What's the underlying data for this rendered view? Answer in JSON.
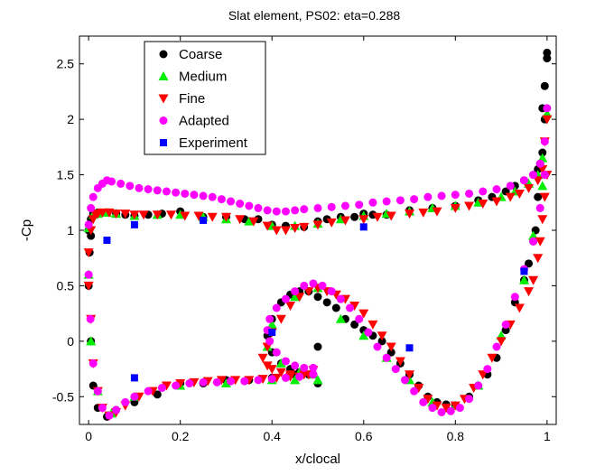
{
  "chart_data": {
    "type": "scatter",
    "title": "Slat element, PS02: eta=0.288",
    "xlabel": "x/clocal",
    "ylabel": "-Cp",
    "xlim": [
      -0.02,
      1.02
    ],
    "ylim": [
      -0.75,
      2.75
    ],
    "xticks": [
      0,
      0.2,
      0.4,
      0.6,
      0.8,
      1
    ],
    "xtick_labels": [
      "0",
      "0.2",
      "0.4",
      "0.6",
      "0.8",
      "1"
    ],
    "yticks": [
      -0.5,
      0,
      0.5,
      1,
      1.5,
      2,
      2.5
    ],
    "ytick_labels": [
      "-0.5",
      "0",
      "0.5",
      "1",
      "1.5",
      "2",
      "2.5"
    ],
    "grid": false,
    "legend_position": "top-left",
    "series": [
      {
        "name": "Coarse",
        "marker": "circle",
        "color": "#000000",
        "x": [
          0.0,
          0.005,
          0.01,
          0.02,
          0.04,
          0.06,
          0.08,
          0.1,
          0.13,
          0.16,
          0.2,
          0.25,
          0.3,
          0.34,
          0.37,
          0.4,
          0.43,
          0.47,
          0.5,
          0.52,
          0.55,
          0.58,
          0.6,
          0.62,
          0.65,
          0.7,
          0.75,
          0.8,
          0.85,
          0.88,
          0.91,
          0.93,
          0.95,
          0.97,
          0.98,
          0.99,
          0.995,
          1.0,
          1.0,
          0.995,
          0.99,
          0.985,
          0.98,
          0.975,
          0.97,
          0.96,
          0.95,
          0.93,
          0.91,
          0.89,
          0.87,
          0.85,
          0.83,
          0.8,
          0.78,
          0.76,
          0.74,
          0.72,
          0.7,
          0.68,
          0.66,
          0.64,
          0.62,
          0.6,
          0.58,
          0.56,
          0.54,
          0.52,
          0.5,
          0.48,
          0.46,
          0.44,
          0.42,
          0.4,
          0.39,
          0.4,
          0.42,
          0.44,
          0.46,
          0.48,
          0.49,
          0.5,
          0.5,
          0.45,
          0.4,
          0.35,
          0.3,
          0.25,
          0.2,
          0.15,
          0.1,
          0.06,
          0.04,
          0.02,
          0.01,
          0.005,
          0.0,
          0.002,
          0.005
        ],
        "y": [
          1.0,
          1.1,
          1.15,
          1.16,
          1.16,
          1.15,
          1.14,
          1.13,
          1.14,
          1.15,
          1.17,
          1.12,
          1.12,
          1.1,
          1.1,
          1.05,
          1.04,
          1.03,
          1.08,
          1.1,
          1.12,
          1.12,
          1.15,
          1.14,
          1.14,
          1.18,
          1.2,
          1.22,
          1.27,
          1.3,
          1.35,
          1.4,
          1.45,
          1.5,
          1.55,
          1.7,
          2.0,
          2.6,
          2.55,
          2.3,
          2.1,
          1.6,
          1.3,
          1.0,
          0.9,
          0.7,
          0.55,
          0.35,
          0.1,
          -0.15,
          -0.3,
          -0.4,
          -0.5,
          -0.58,
          -0.57,
          -0.55,
          -0.5,
          -0.4,
          -0.3,
          -0.2,
          -0.1,
          0.0,
          0.05,
          0.1,
          0.15,
          0.2,
          0.3,
          0.35,
          0.4,
          0.45,
          0.45,
          0.42,
          0.35,
          0.2,
          0.05,
          -0.1,
          -0.2,
          -0.25,
          -0.28,
          -0.3,
          -0.3,
          -0.38,
          -0.05,
          -0.3,
          -0.33,
          -0.35,
          -0.35,
          -0.38,
          -0.38,
          -0.48,
          -0.55,
          -0.62,
          -0.68,
          -0.6,
          -0.4,
          0.0,
          0.5,
          0.8,
          0.95
        ]
      },
      {
        "name": "Medium",
        "marker": "triangle-up",
        "color": "#00ee00",
        "x": [
          0.0,
          0.01,
          0.02,
          0.04,
          0.06,
          0.1,
          0.15,
          0.2,
          0.25,
          0.3,
          0.35,
          0.4,
          0.45,
          0.5,
          0.55,
          0.6,
          0.65,
          0.7,
          0.75,
          0.8,
          0.85,
          0.9,
          0.93,
          0.96,
          0.98,
          0.99,
          1.0,
          0.99,
          0.97,
          0.95,
          0.9,
          0.85,
          0.8,
          0.75,
          0.7,
          0.65,
          0.6,
          0.55,
          0.5,
          0.45,
          0.4,
          0.39,
          0.42,
          0.46,
          0.49,
          0.5,
          0.45,
          0.4,
          0.3,
          0.2,
          0.1,
          0.05,
          0.02,
          0.005,
          0.0
        ],
        "y": [
          1.02,
          1.14,
          1.15,
          1.16,
          1.15,
          1.13,
          1.14,
          1.14,
          1.12,
          1.1,
          1.08,
          1.04,
          1.04,
          1.06,
          1.1,
          1.13,
          1.15,
          1.17,
          1.2,
          1.22,
          1.25,
          1.3,
          1.35,
          1.42,
          1.5,
          1.65,
          2.05,
          1.4,
          0.95,
          0.55,
          0.05,
          -0.4,
          -0.58,
          -0.55,
          -0.35,
          -0.15,
          0.05,
          0.2,
          0.48,
          0.4,
          0.15,
          -0.05,
          -0.2,
          -0.28,
          -0.3,
          -0.35,
          -0.35,
          -0.35,
          -0.38,
          -0.4,
          -0.5,
          -0.65,
          -0.45,
          0.0,
          0.6
        ]
      },
      {
        "name": "Fine",
        "marker": "triangle-down",
        "color": "#ff0000",
        "x": [
          0.0,
          0.005,
          0.01,
          0.015,
          0.02,
          0.03,
          0.045,
          0.06,
          0.08,
          0.1,
          0.12,
          0.15,
          0.18,
          0.21,
          0.24,
          0.27,
          0.3,
          0.33,
          0.36,
          0.39,
          0.41,
          0.43,
          0.45,
          0.47,
          0.5,
          0.53,
          0.56,
          0.6,
          0.63,
          0.66,
          0.7,
          0.73,
          0.76,
          0.8,
          0.83,
          0.86,
          0.89,
          0.92,
          0.94,
          0.96,
          0.98,
          0.99,
          0.995,
          1.0,
          1.0,
          0.995,
          0.99,
          0.985,
          0.98,
          0.97,
          0.96,
          0.94,
          0.92,
          0.9,
          0.88,
          0.86,
          0.84,
          0.82,
          0.8,
          0.78,
          0.76,
          0.74,
          0.72,
          0.7,
          0.68,
          0.66,
          0.64,
          0.62,
          0.6,
          0.58,
          0.56,
          0.54,
          0.52,
          0.5,
          0.48,
          0.46,
          0.44,
          0.42,
          0.4,
          0.39,
          0.38,
          0.39,
          0.4,
          0.42,
          0.44,
          0.46,
          0.48,
          0.49,
          0.47,
          0.44,
          0.41,
          0.38,
          0.35,
          0.32,
          0.29,
          0.26,
          0.23,
          0.2,
          0.17,
          0.14,
          0.11,
          0.08,
          0.06,
          0.045,
          0.03,
          0.02,
          0.01,
          0.005,
          0.0
        ],
        "y": [
          0.8,
          1.0,
          1.1,
          1.14,
          1.15,
          1.16,
          1.16,
          1.15,
          1.15,
          1.14,
          1.14,
          1.14,
          1.14,
          1.13,
          1.13,
          1.12,
          1.12,
          1.1,
          1.08,
          1.04,
          1.0,
          1.0,
          1.02,
          1.03,
          1.05,
          1.07,
          1.09,
          1.1,
          1.12,
          1.13,
          1.15,
          1.16,
          1.17,
          1.2,
          1.22,
          1.24,
          1.26,
          1.3,
          1.33,
          1.38,
          1.45,
          1.55,
          1.8,
          2.0,
          1.5,
          1.3,
          1.1,
          0.9,
          0.75,
          0.55,
          0.45,
          0.3,
          0.15,
          0.0,
          -0.15,
          -0.3,
          -0.42,
          -0.52,
          -0.58,
          -0.6,
          -0.58,
          -0.52,
          -0.42,
          -0.3,
          -0.18,
          -0.05,
          0.05,
          0.15,
          0.25,
          0.32,
          0.38,
          0.42,
          0.45,
          0.48,
          0.45,
          0.4,
          0.32,
          0.2,
          0.08,
          -0.05,
          -0.15,
          -0.22,
          -0.25,
          -0.28,
          -0.3,
          -0.32,
          -0.3,
          -0.26,
          -0.3,
          -0.32,
          -0.33,
          -0.34,
          -0.35,
          -0.35,
          -0.35,
          -0.36,
          -0.37,
          -0.38,
          -0.4,
          -0.45,
          -0.5,
          -0.58,
          -0.64,
          -0.67,
          -0.6,
          -0.45,
          -0.2,
          0.2,
          0.5
        ]
      },
      {
        "name": "Adapted",
        "marker": "circle",
        "color": "#ff00ff",
        "x": [
          0.0,
          0.005,
          0.01,
          0.02,
          0.03,
          0.04,
          0.05,
          0.07,
          0.09,
          0.11,
          0.13,
          0.15,
          0.17,
          0.19,
          0.21,
          0.23,
          0.25,
          0.27,
          0.29,
          0.31,
          0.33,
          0.35,
          0.37,
          0.39,
          0.41,
          0.43,
          0.45,
          0.47,
          0.5,
          0.53,
          0.56,
          0.59,
          0.62,
          0.65,
          0.68,
          0.71,
          0.74,
          0.77,
          0.8,
          0.83,
          0.86,
          0.89,
          0.92,
          0.95,
          0.97,
          0.985,
          0.995,
          1.0,
          0.995,
          0.985,
          0.97,
          0.95,
          0.93,
          0.91,
          0.89,
          0.87,
          0.85,
          0.83,
          0.81,
          0.79,
          0.77,
          0.75,
          0.73,
          0.71,
          0.69,
          0.67,
          0.65,
          0.63,
          0.61,
          0.59,
          0.57,
          0.55,
          0.53,
          0.51,
          0.49,
          0.47,
          0.45,
          0.43,
          0.41,
          0.395,
          0.39,
          0.395,
          0.41,
          0.43,
          0.45,
          0.47,
          0.49,
          0.49,
          0.46,
          0.43,
          0.4,
          0.37,
          0.34,
          0.31,
          0.28,
          0.25,
          0.22,
          0.19,
          0.16,
          0.13,
          0.1,
          0.08,
          0.06,
          0.045,
          0.03,
          0.02,
          0.01,
          0.004,
          0.0
        ],
        "y": [
          1.05,
          1.2,
          1.3,
          1.38,
          1.42,
          1.45,
          1.44,
          1.42,
          1.4,
          1.38,
          1.37,
          1.36,
          1.35,
          1.34,
          1.33,
          1.32,
          1.31,
          1.3,
          1.28,
          1.26,
          1.24,
          1.22,
          1.2,
          1.18,
          1.17,
          1.17,
          1.18,
          1.19,
          1.2,
          1.21,
          1.22,
          1.23,
          1.25,
          1.26,
          1.27,
          1.28,
          1.3,
          1.31,
          1.32,
          1.33,
          1.35,
          1.37,
          1.4,
          1.45,
          1.5,
          1.6,
          1.8,
          2.1,
          1.5,
          1.2,
          0.9,
          0.65,
          0.4,
          0.15,
          -0.05,
          -0.25,
          -0.4,
          -0.52,
          -0.6,
          -0.63,
          -0.64,
          -0.6,
          -0.55,
          -0.45,
          -0.35,
          -0.25,
          -0.15,
          -0.05,
          0.08,
          0.2,
          0.3,
          0.38,
          0.45,
          0.5,
          0.52,
          0.5,
          0.45,
          0.38,
          0.3,
          0.2,
          0.1,
          0.0,
          -0.1,
          -0.18,
          -0.22,
          -0.24,
          -0.24,
          -0.3,
          -0.32,
          -0.33,
          -0.34,
          -0.35,
          -0.36,
          -0.36,
          -0.37,
          -0.37,
          -0.38,
          -0.4,
          -0.42,
          -0.45,
          -0.5,
          -0.55,
          -0.62,
          -0.67,
          -0.6,
          -0.45,
          -0.2,
          0.2,
          0.6
        ]
      },
      {
        "name": "Experiment",
        "marker": "square",
        "color": "#0000ff",
        "x": [
          0.04,
          0.1,
          0.25,
          0.6,
          0.95,
          0.4,
          0.7,
          0.1
        ],
        "y": [
          0.91,
          1.05,
          1.09,
          1.03,
          0.63,
          0.08,
          -0.06,
          -0.33
        ]
      }
    ]
  }
}
